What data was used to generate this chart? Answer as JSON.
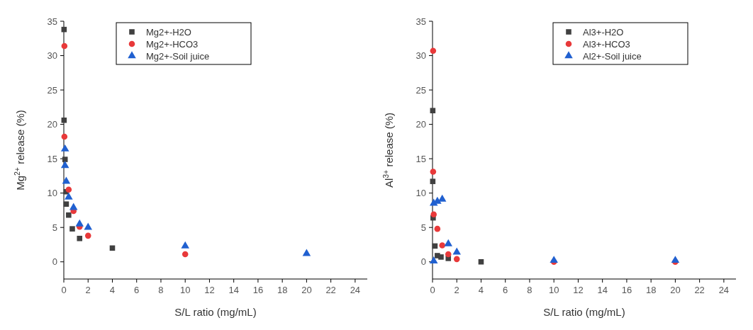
{
  "chart_data": [
    {
      "type": "scatter",
      "xlabel": "S/L ratio (mg/mL)",
      "ylabel": "Mg$^{2+}$ release (%)",
      "xlim": [
        0,
        25
      ],
      "xticks": [
        0,
        2,
        4,
        6,
        8,
        10,
        12,
        14,
        16,
        18,
        20,
        22,
        24
      ],
      "ylim": [
        -2.5,
        35
      ],
      "yticks": [
        0,
        5,
        10,
        15,
        20,
        25,
        30,
        35
      ],
      "legend": "top",
      "grid": false,
      "series": [
        {
          "name": "Mg2+-H2O",
          "color": "#404040",
          "marker": "square",
          "x": [
            0.02,
            0.02,
            0.1,
            0.2,
            0.2,
            0.4,
            0.7,
            1.3,
            4
          ],
          "values": [
            33.8,
            20.6,
            14.9,
            10.2,
            8.4,
            6.8,
            4.8,
            3.4,
            2.0
          ]
        },
        {
          "name": "Mg2+-HCO3",
          "color": "#e8393a",
          "marker": "circle",
          "x": [
            0.05,
            0.05,
            0.4,
            0.8,
            1.3,
            2,
            10
          ],
          "values": [
            31.4,
            18.2,
            10.5,
            7.4,
            5.1,
            3.8,
            1.1
          ]
        },
        {
          "name": "Mg2+-Soil juice",
          "color": "#2060d0",
          "marker": "triangle",
          "x": [
            0.1,
            0.1,
            0.2,
            0.4,
            0.8,
            1.3,
            2,
            10,
            20
          ],
          "values": [
            16.4,
            14.0,
            11.7,
            9.4,
            7.9,
            5.5,
            5.0,
            2.3,
            1.2
          ]
        }
      ]
    },
    {
      "type": "scatter",
      "xlabel": "S/L ratio (mg/mL)",
      "ylabel": "Al$^{3+}$ release (%)",
      "xlim": [
        0,
        25
      ],
      "xticks": [
        0,
        2,
        4,
        6,
        8,
        10,
        12,
        14,
        16,
        18,
        20,
        22,
        24
      ],
      "ylim": [
        -2.5,
        35
      ],
      "yticks": [
        0,
        5,
        10,
        15,
        20,
        25,
        30,
        35
      ],
      "legend": "top right",
      "grid": false,
      "series": [
        {
          "name": "Al3+-H2O",
          "color": "#404040",
          "marker": "square",
          "x": [
            0.02,
            0.02,
            0.05,
            0.2,
            0.4,
            0.7,
            1.3,
            4
          ],
          "values": [
            22.0,
            11.7,
            6.4,
            2.3,
            0.9,
            0.7,
            0.5,
            0.0
          ]
        },
        {
          "name": "Al3+-HCO3",
          "color": "#e8393a",
          "marker": "circle",
          "x": [
            0.05,
            0.05,
            0.1,
            0.4,
            0.8,
            1.3,
            2,
            10,
            20
          ],
          "values": [
            30.7,
            13.1,
            6.9,
            4.8,
            2.4,
            1.1,
            0.4,
            0.0,
            0.0
          ]
        },
        {
          "name": "Al2+-Soil juice",
          "color": "#2060d0",
          "marker": "triangle",
          "x": [
            0.1,
            0.1,
            0.4,
            0.8,
            1.3,
            2,
            10,
            20
          ],
          "values": [
            0.1,
            8.5,
            8.8,
            9.1,
            2.6,
            1.4,
            0.2,
            0.2
          ]
        }
      ]
    }
  ]
}
